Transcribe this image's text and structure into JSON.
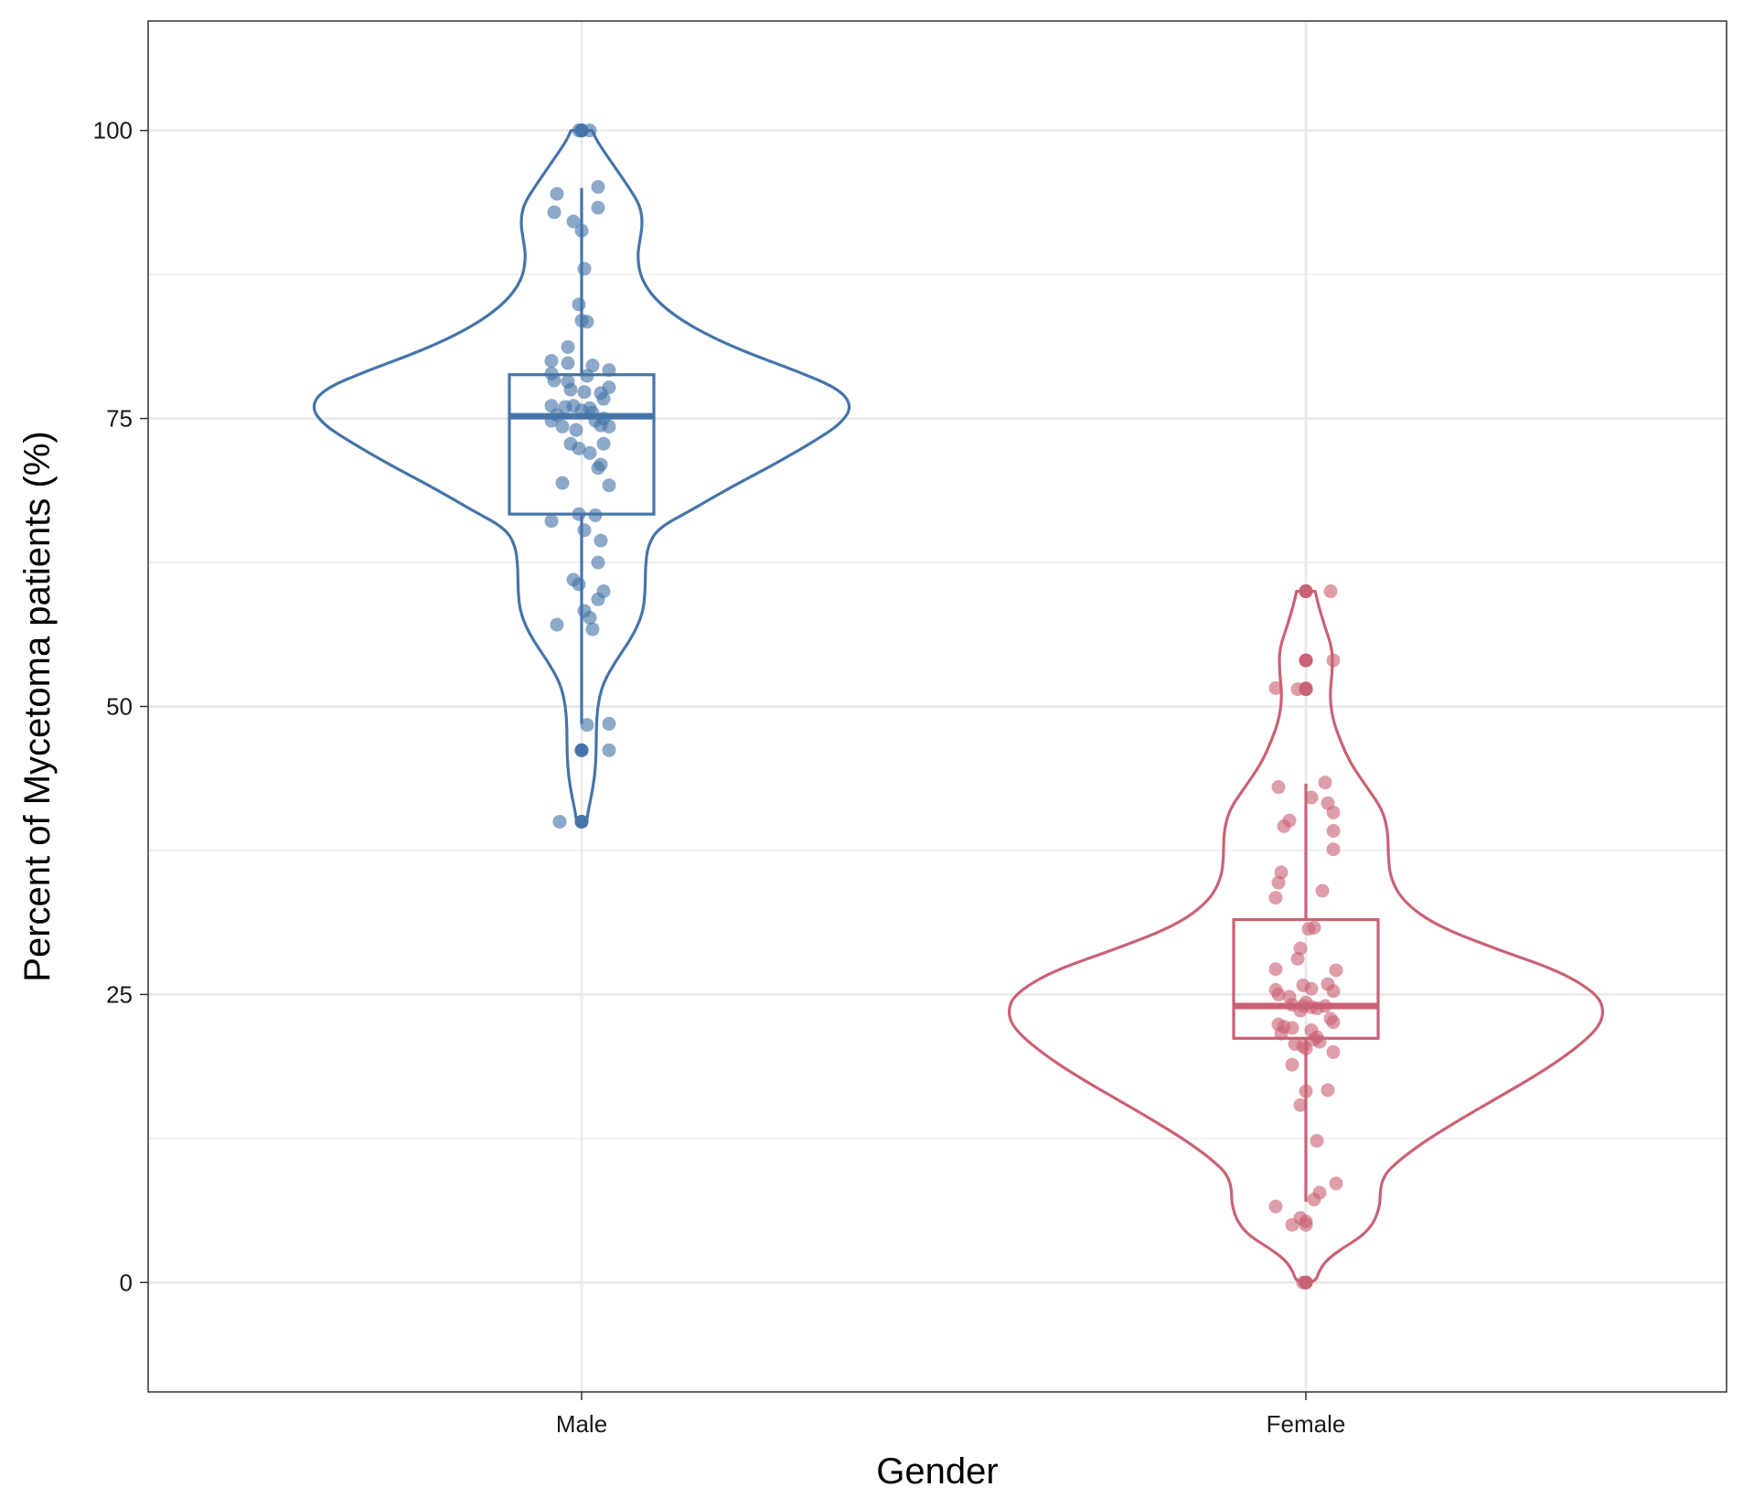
{
  "chart_data": {
    "type": "violin",
    "title": "",
    "xlabel": "Gender",
    "ylabel": "Percent of Mycetoma patients (%)",
    "categories": [
      "Male",
      "Female"
    ],
    "ylim": [
      -9.5,
      109.5
    ],
    "y_ticks": [
      0,
      25,
      50,
      75,
      100
    ],
    "y_tick_labels": [
      "0",
      "25",
      "50",
      "75",
      "100"
    ],
    "grid": true,
    "legend": "none",
    "series": [
      {
        "name": "Male",
        "color": "#4575a8",
        "box": {
          "min": 48.5,
          "q1": 66.7,
          "median": 75.2,
          "q3": 78.8,
          "max": 95.0
        },
        "outliers": [
          100,
          100,
          46.2,
          40.0
        ],
        "violin_range": [
          40,
          100
        ],
        "violin_density": [
          [
            40,
            0.04
          ],
          [
            41,
            0.05
          ],
          [
            42,
            0.07
          ],
          [
            44,
            0.1
          ],
          [
            46,
            0.11
          ],
          [
            48,
            0.11
          ],
          [
            50,
            0.12
          ],
          [
            52,
            0.16
          ],
          [
            54,
            0.26
          ],
          [
            56,
            0.38
          ],
          [
            58,
            0.46
          ],
          [
            60,
            0.48
          ],
          [
            62,
            0.48
          ],
          [
            64,
            0.5
          ],
          [
            65.5,
            0.58
          ],
          [
            67,
            0.82
          ],
          [
            69,
            1.12
          ],
          [
            71,
            1.45
          ],
          [
            73,
            1.75
          ],
          [
            74.5,
            1.95
          ],
          [
            76,
            2.04
          ],
          [
            77.5,
            1.95
          ],
          [
            79,
            1.65
          ],
          [
            81,
            1.18
          ],
          [
            83,
            0.82
          ],
          [
            85,
            0.58
          ],
          [
            87,
            0.45
          ],
          [
            89,
            0.42
          ],
          [
            90.5,
            0.44
          ],
          [
            92,
            0.46
          ],
          [
            93.5,
            0.44
          ],
          [
            95,
            0.36
          ],
          [
            97,
            0.24
          ],
          [
            99,
            0.12
          ],
          [
            100,
            0.08
          ]
        ],
        "points": [
          [
            0.0,
            100
          ],
          [
            0.03,
            100
          ],
          [
            -0.01,
            100
          ],
          [
            -0.09,
            94.5
          ],
          [
            0.06,
            95.1
          ],
          [
            -0.1,
            92.9
          ],
          [
            0.06,
            93.3
          ],
          [
            -0.03,
            92.1
          ],
          [
            0.0,
            91.3
          ],
          [
            0.01,
            88.0
          ],
          [
            -0.01,
            84.9
          ],
          [
            0.0,
            83.5
          ],
          [
            0.02,
            83.4
          ],
          [
            -0.05,
            81.2
          ],
          [
            -0.11,
            80.0
          ],
          [
            -0.05,
            79.8
          ],
          [
            0.04,
            79.6
          ],
          [
            0.1,
            79.2
          ],
          [
            -0.11,
            78.9
          ],
          [
            0.02,
            78.7
          ],
          [
            -0.1,
            78.3
          ],
          [
            -0.05,
            78.2
          ],
          [
            0.1,
            77.7
          ],
          [
            -0.04,
            77.5
          ],
          [
            0.01,
            77.3
          ],
          [
            0.07,
            77.2
          ],
          [
            0.08,
            76.7
          ],
          [
            -0.11,
            76.1
          ],
          [
            -0.03,
            76.1
          ],
          [
            -0.06,
            76.0
          ],
          [
            0.03,
            75.9
          ],
          [
            0.0,
            75.7
          ],
          [
            0.04,
            75.5
          ],
          [
            -0.09,
            75.3
          ],
          [
            0.08,
            75.0
          ],
          [
            -0.11,
            74.8
          ],
          [
            0.05,
            74.8
          ],
          [
            0.07,
            74.4
          ],
          [
            0.1,
            74.3
          ],
          [
            -0.07,
            74.3
          ],
          [
            -0.02,
            74.0
          ],
          [
            0.08,
            72.8
          ],
          [
            -0.04,
            72.8
          ],
          [
            -0.01,
            72.4
          ],
          [
            0.03,
            72.0
          ],
          [
            0.07,
            71.0
          ],
          [
            0.06,
            70.7
          ],
          [
            -0.07,
            69.4
          ],
          [
            0.1,
            69.2
          ],
          [
            -0.01,
            66.7
          ],
          [
            0.05,
            66.6
          ],
          [
            -0.11,
            66.1
          ],
          [
            0.01,
            65.3
          ],
          [
            0.07,
            64.4
          ],
          [
            0.06,
            62.5
          ],
          [
            -0.03,
            61.0
          ],
          [
            -0.01,
            60.6
          ],
          [
            0.08,
            60.0
          ],
          [
            0.06,
            59.3
          ],
          [
            0.01,
            58.3
          ],
          [
            0.03,
            57.7
          ],
          [
            -0.09,
            57.1
          ],
          [
            0.04,
            56.7
          ],
          [
            0.1,
            48.5
          ],
          [
            0.02,
            48.4
          ],
          [
            0.0,
            46.2
          ],
          [
            0.1,
            46.2
          ],
          [
            -0.08,
            40.0
          ],
          [
            0.0,
            40.0
          ]
        ]
      },
      {
        "name": "Female",
        "color": "#c96274",
        "box": {
          "min": 7.0,
          "q1": 21.2,
          "median": 24.0,
          "q3": 31.5,
          "max": 43.3
        },
        "outliers": [
          60,
          60,
          54.0,
          54.0,
          51.5,
          51.5,
          0,
          0
        ],
        "violin_range": [
          0,
          60
        ],
        "violin_density": [
          [
            0,
            0.07
          ],
          [
            1,
            0.1
          ],
          [
            2,
            0.16
          ],
          [
            3,
            0.28
          ],
          [
            4,
            0.42
          ],
          [
            5,
            0.5
          ],
          [
            6,
            0.54
          ],
          [
            7,
            0.56
          ],
          [
            8,
            0.56
          ],
          [
            9,
            0.58
          ],
          [
            10,
            0.64
          ],
          [
            12,
            0.86
          ],
          [
            14,
            1.14
          ],
          [
            16,
            1.44
          ],
          [
            18,
            1.74
          ],
          [
            20,
            2.0
          ],
          [
            22,
            2.2
          ],
          [
            23.5,
            2.25
          ],
          [
            25,
            2.2
          ],
          [
            27,
            1.92
          ],
          [
            29,
            1.42
          ],
          [
            31,
            0.98
          ],
          [
            33,
            0.74
          ],
          [
            35,
            0.64
          ],
          [
            37,
            0.62
          ],
          [
            39,
            0.62
          ],
          [
            41,
            0.58
          ],
          [
            43,
            0.46
          ],
          [
            45,
            0.34
          ],
          [
            47,
            0.26
          ],
          [
            49,
            0.2
          ],
          [
            51,
            0.18
          ],
          [
            53,
            0.2
          ],
          [
            55,
            0.2
          ],
          [
            57,
            0.14
          ],
          [
            59,
            0.09
          ],
          [
            60,
            0.07
          ]
        ],
        "points": [
          [
            0.0,
            60
          ],
          [
            0.09,
            60
          ],
          [
            0.0,
            54.0
          ],
          [
            0.1,
            54.0
          ],
          [
            -0.11,
            51.6
          ],
          [
            -0.03,
            51.5
          ],
          [
            0.0,
            51.6
          ],
          [
            0.07,
            43.4
          ],
          [
            -0.1,
            43.0
          ],
          [
            0.02,
            42.1
          ],
          [
            0.08,
            41.6
          ],
          [
            0.1,
            40.8
          ],
          [
            -0.06,
            40.1
          ],
          [
            -0.08,
            39.6
          ],
          [
            0.1,
            39.2
          ],
          [
            0.1,
            37.6
          ],
          [
            -0.09,
            35.6
          ],
          [
            -0.1,
            34.7
          ],
          [
            0.06,
            34.0
          ],
          [
            -0.11,
            33.4
          ],
          [
            0.03,
            30.8
          ],
          [
            0.01,
            30.7
          ],
          [
            -0.02,
            29.0
          ],
          [
            -0.03,
            28.1
          ],
          [
            -0.11,
            27.2
          ],
          [
            0.11,
            27.1
          ],
          [
            0.08,
            25.9
          ],
          [
            -0.01,
            25.8
          ],
          [
            0.02,
            25.5
          ],
          [
            -0.11,
            25.4
          ],
          [
            0.1,
            25.3
          ],
          [
            -0.1,
            25.0
          ],
          [
            -0.06,
            24.8
          ],
          [
            0.0,
            24.3
          ],
          [
            -0.05,
            24.1
          ],
          [
            -0.01,
            24.0
          ],
          [
            0.02,
            23.9
          ],
          [
            0.07,
            24.0
          ],
          [
            0.04,
            23.8
          ],
          [
            -0.02,
            23.6
          ],
          [
            0.09,
            22.9
          ],
          [
            0.1,
            22.6
          ],
          [
            -0.1,
            22.4
          ],
          [
            -0.08,
            22.2
          ],
          [
            -0.05,
            22.1
          ],
          [
            0.02,
            21.9
          ],
          [
            -0.09,
            21.6
          ],
          [
            0.04,
            21.3
          ],
          [
            0.03,
            21.1
          ],
          [
            0.05,
            20.9
          ],
          [
            -0.04,
            20.7
          ],
          [
            -0.01,
            20.5
          ],
          [
            0.0,
            20.3
          ],
          [
            0.1,
            20.0
          ],
          [
            -0.05,
            18.9
          ],
          [
            0.08,
            16.7
          ],
          [
            0.0,
            16.6
          ],
          [
            -0.02,
            15.4
          ],
          [
            0.04,
            12.3
          ],
          [
            0.11,
            8.6
          ],
          [
            0.05,
            7.8
          ],
          [
            0.03,
            7.2
          ],
          [
            -0.11,
            6.6
          ],
          [
            -0.02,
            5.6
          ],
          [
            0.0,
            5.3
          ],
          [
            -0.05,
            5.0
          ],
          [
            0.0,
            5.0
          ],
          [
            -0.01,
            0
          ],
          [
            0.0,
            0
          ]
        ]
      }
    ]
  }
}
